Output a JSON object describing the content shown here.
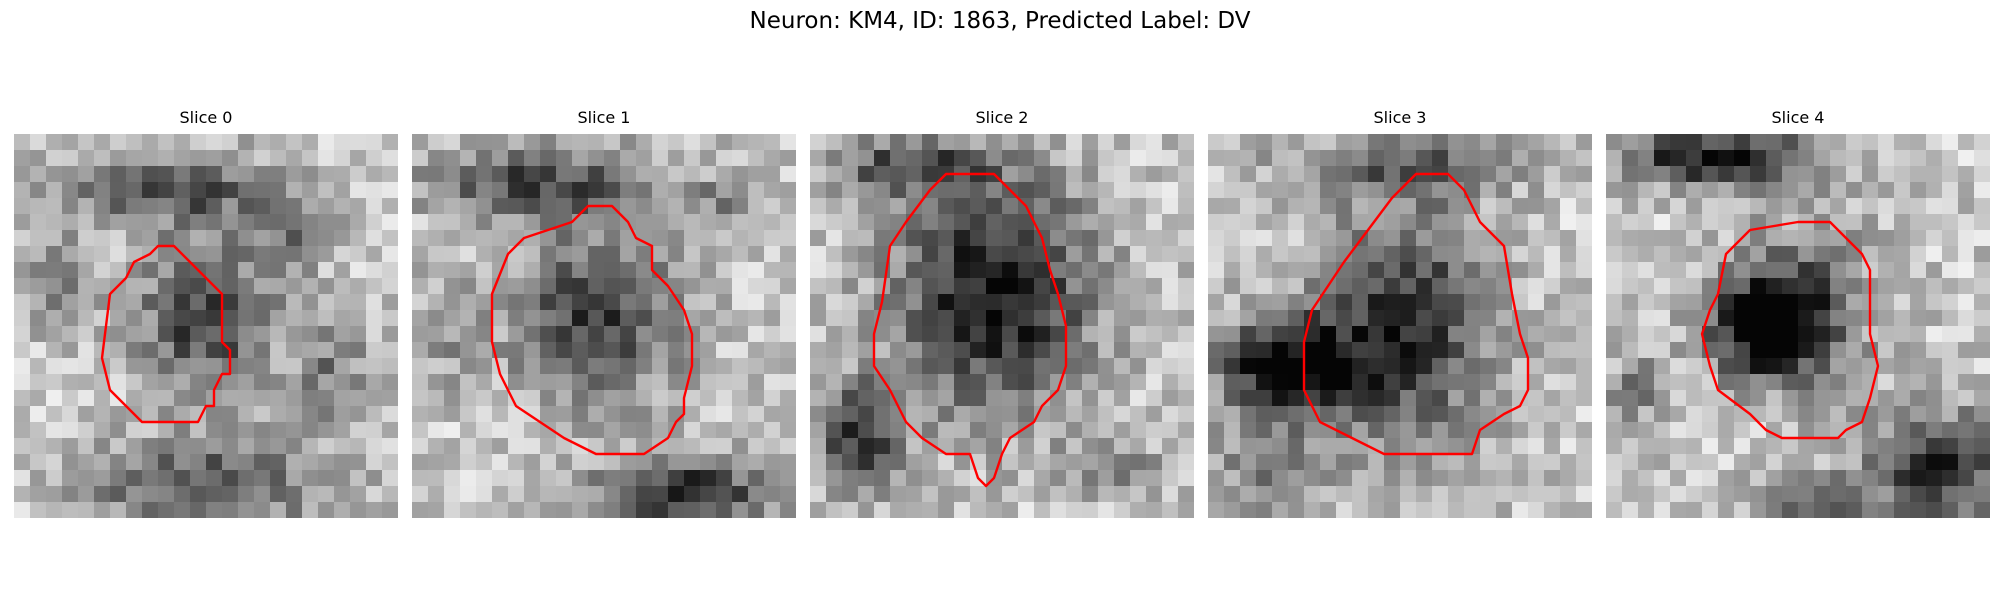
{
  "figure": {
    "title": "Neuron: KM4, ID: 1863, Predicted Label: DV"
  },
  "colors": {
    "contour": "#ff0000",
    "background": "#ffffff"
  },
  "panels": [
    {
      "title": "Slice 0",
      "contour_color": "#ff0000",
      "image_desc": "grayscale microscopy patch, medium gray blob centered"
    },
    {
      "title": "Slice 1",
      "contour_color": "#ff0000",
      "image_desc": "grayscale microscopy patch, round gray cell body"
    },
    {
      "title": "Slice 2",
      "contour_color": "#ff0000",
      "image_desc": "grayscale microscopy patch, dark cell body"
    },
    {
      "title": "Slice 3",
      "contour_color": "#ff0000",
      "image_desc": "grayscale microscopy patch, dark oblique cell body"
    },
    {
      "title": "Slice 4",
      "contour_color": "#ff0000",
      "image_desc": "grayscale microscopy patch, dark cell core"
    }
  ]
}
